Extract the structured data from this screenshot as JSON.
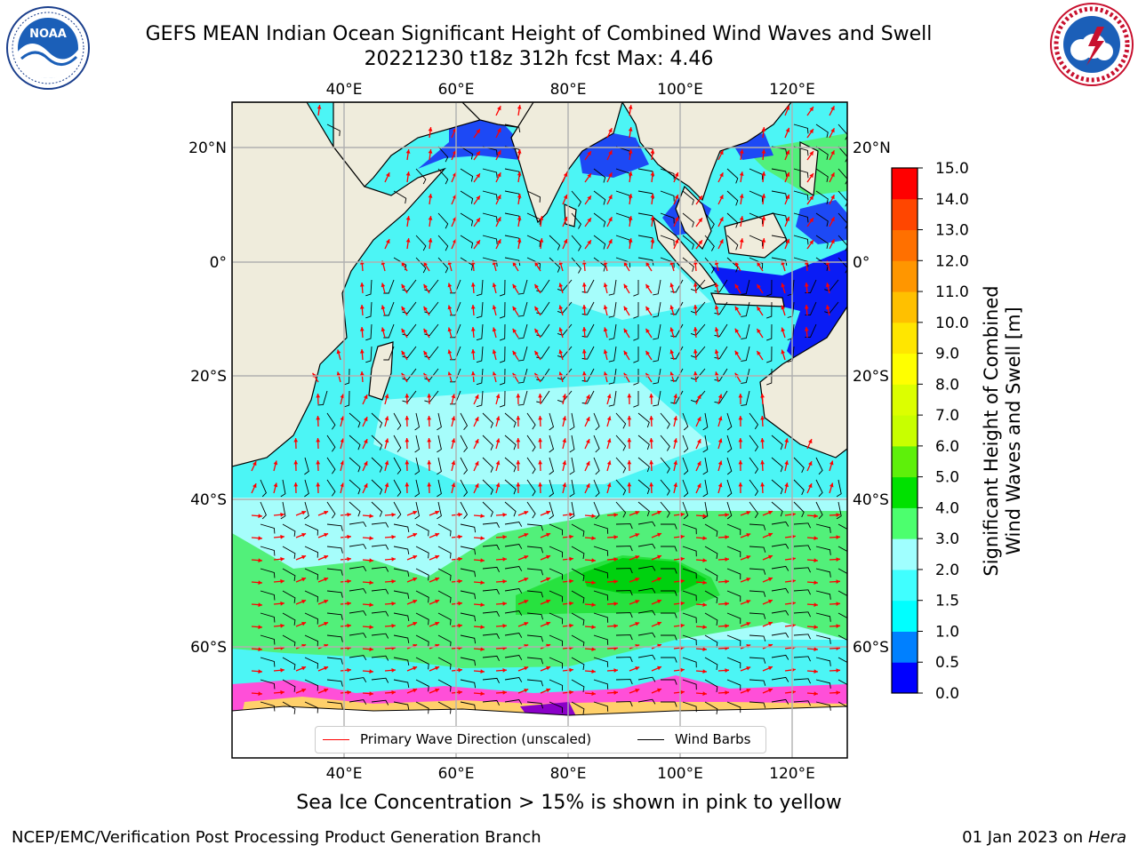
{
  "title": {
    "line1": "GEFS MEAN Indian Ocean Significant Height of Combined Wind Waves and Swell",
    "line2": "20221230 t18z 312h fcst   Max: 4.46"
  },
  "logos": {
    "noaa": {
      "text": "NOAA",
      "ring_text": "NATIONAL OCEANIC AND ATMOSPHERIC ADMINISTRATION · U.S. DEPARTMENT OF COMMERCE"
    },
    "nws": {
      "ring_text": "NATIONAL WEATHER SERVICE"
    }
  },
  "map": {
    "lon_ticks": [
      "40°E",
      "60°E",
      "80°E",
      "100°E",
      "120°E"
    ],
    "lat_ticks": [
      "20°N",
      "0°",
      "20°S",
      "40°S",
      "60°S"
    ],
    "colors": {
      "land": "#efecdc",
      "ice_shelf": "#ffffff",
      "grid": "#b0b0b0",
      "wave_arrow": "#ff0000",
      "wind_barb": "#000000"
    }
  },
  "legend": {
    "wave": "Primary Wave Direction (unscaled)",
    "wind": "Wind Barbs"
  },
  "colorbar": {
    "label_line1": "Significant Height of Combined",
    "label_line2": "Wind Waves and Swell [m]",
    "ticks": [
      "0.0",
      "0.5",
      "1.0",
      "1.5",
      "2.0",
      "3.0",
      "4.0",
      "5.0",
      "6.0",
      "7.0",
      "8.0",
      "9.0",
      "10.0",
      "11.0",
      "12.0",
      "13.0",
      "14.0",
      "15.0"
    ],
    "colors": [
      "#0000ff",
      "#0080ff",
      "#00ffff",
      "#40ffff",
      "#a0ffff",
      "#4cff6e",
      "#00e100",
      "#5ef00a",
      "#c8ff00",
      "#dcff00",
      "#ffff00",
      "#ffe600",
      "#ffc000",
      "#ff9600",
      "#ff7000",
      "#ff4600",
      "#ff0000"
    ]
  },
  "note": "Sea Ice Concentration > 15% is shown in pink to yellow",
  "footer": {
    "left": "NCEP/EMC/Verification Post Processing Product Generation Branch",
    "right_date": "01 Jan 2023 on ",
    "right_host": "Hera"
  }
}
